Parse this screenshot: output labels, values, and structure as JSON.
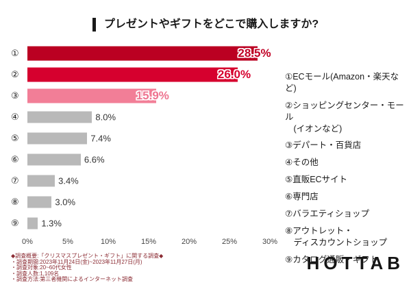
{
  "title": "プレゼントやギフトをどこで購入しますか?",
  "colors": {
    "accent_dark_red": "#bb0022",
    "accent_red": "#d6002e",
    "accent_pink": "#f27e97",
    "bar_gray": "#b9b9b9",
    "footnote_red": "#8b2b33"
  },
  "chart_data": {
    "type": "bar",
    "orientation": "horizontal",
    "title": "プレゼントやギフトをどこで購入しますか?",
    "categories": [
      "①",
      "②",
      "③",
      "④",
      "⑤",
      "⑥",
      "⑦",
      "⑧",
      "⑨"
    ],
    "values": [
      28.5,
      26.0,
      15.9,
      8.0,
      7.4,
      6.6,
      3.4,
      3.0,
      1.3
    ],
    "value_labels": [
      "28.5%",
      "26.0%",
      "15.9%",
      "8.0%",
      "7.4%",
      "6.6%",
      "3.4%",
      "3.0%",
      "1.3%"
    ],
    "bar_colors": [
      "#bb0022",
      "#d6002e",
      "#f27e97",
      "#b9b9b9",
      "#b9b9b9",
      "#b9b9b9",
      "#b9b9b9",
      "#b9b9b9",
      "#b9b9b9"
    ],
    "value_label_colors": [
      "#c10025",
      "#d6002e",
      "#ee7490",
      "#333333",
      "#333333",
      "#333333",
      "#333333",
      "#333333",
      "#333333"
    ],
    "xlim": [
      0,
      30
    ],
    "x_ticks": [
      "0%",
      "5%",
      "10%",
      "15%",
      "20%",
      "25%",
      "30%"
    ],
    "grid": false,
    "legend_position": "right",
    "legend_labels": [
      "①ECモール(Amazon・楽天など)",
      "②ショッピングセンター・モール\n　(イオンなど)",
      "③デパート・百貨店",
      "④その他",
      "⑤直販ECサイト",
      "⑥専門店",
      "⑦バラエティショップ",
      "⑧アウトレット・\n　ディスカウントショップ",
      "⑨カタログ通販・ギフト"
    ]
  },
  "footnote": {
    "lines": [
      "◆調査概要:「クリスマスプレゼント・ギフト」に関する調査◆",
      "・調査期間:2023年11月24日(金)~2023年11月27日(月)",
      "・調査対象:20~60代女性",
      "・調査人数:1,109名",
      "・調査方法:第三者機関によるインターネット調査"
    ]
  },
  "logo": "HOTTAB"
}
